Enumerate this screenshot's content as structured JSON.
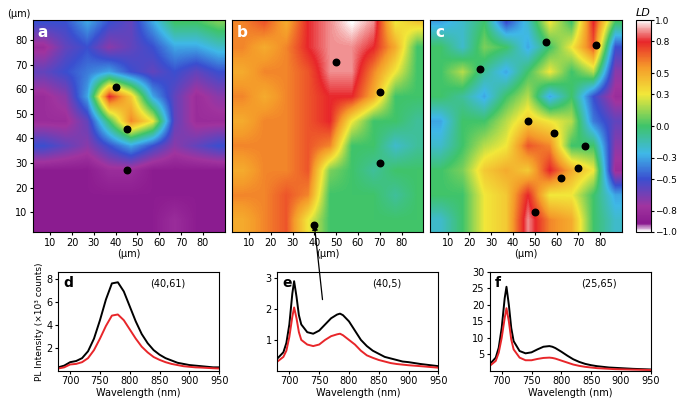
{
  "chart_data": [
    {
      "type": "heatmap",
      "title": "a",
      "x_label": "(μm)",
      "y_label": "(μm)",
      "x": [
        7,
        17,
        27,
        37,
        47,
        57,
        67,
        77,
        87
      ],
      "y": [
        7,
        17,
        27,
        37,
        47,
        57,
        67,
        77,
        87
      ],
      "cells": [
        [
          -0.9,
          -0.9,
          -0.9,
          -0.9,
          -0.9,
          -0.9,
          -0.8,
          -0.9,
          -0.9
        ],
        [
          -0.9,
          -0.9,
          -0.9,
          -0.9,
          -0.9,
          -0.9,
          -0.9,
          -0.9,
          -0.9
        ],
        [
          -0.9,
          -0.9,
          -0.9,
          -0.8,
          -0.8,
          -0.9,
          -0.9,
          -0.9,
          -0.9
        ],
        [
          -0.5,
          -0.6,
          -0.7,
          -0.5,
          -0.3,
          -0.5,
          -0.7,
          -0.6,
          -0.5
        ],
        [
          -0.8,
          -0.8,
          -0.6,
          0.0,
          0.6,
          0.3,
          -0.6,
          -0.8,
          -0.8
        ],
        [
          -0.8,
          -0.7,
          -0.3,
          0.8,
          0.4,
          -0.3,
          -0.6,
          -0.8,
          -0.7
        ],
        [
          -0.6,
          -0.5,
          -0.4,
          -0.3,
          -0.5,
          -0.6,
          -0.5,
          -0.6,
          -0.5
        ],
        [
          -0.8,
          -0.6,
          -0.5,
          -0.7,
          -0.6,
          -0.5,
          -0.3,
          -0.3,
          -0.2
        ],
        [
          -0.5,
          -0.5,
          -0.3,
          -0.5,
          -0.6,
          -0.3,
          0.0,
          0.0,
          0.1
        ]
      ],
      "clim": [
        -1.0,
        1.0
      ],
      "points": {
        "x": [
          40,
          45,
          45
        ],
        "y": [
          61,
          44,
          27
        ]
      },
      "xlim": [
        2,
        90
      ],
      "ylim": [
        2,
        88
      ],
      "xticks": [
        10,
        20,
        30,
        40,
        50,
        60,
        70,
        80
      ],
      "yticks": [
        10,
        20,
        30,
        40,
        50,
        60,
        70,
        80
      ]
    },
    {
      "type": "heatmap",
      "title": "b",
      "x_label": "(μm)",
      "tick_labels": "x",
      "x": [
        7,
        17,
        27,
        37,
        47,
        57,
        67,
        77,
        87
      ],
      "y": [
        7,
        17,
        27,
        37,
        47,
        57,
        67,
        77,
        87
      ],
      "cells": [
        [
          0.5,
          0.6,
          0.7,
          0.3,
          0.0,
          0.0,
          0.0,
          0.0,
          0.0
        ],
        [
          0.6,
          0.6,
          0.7,
          0.6,
          0.0,
          0.0,
          0.0,
          -0.1,
          0.0
        ],
        [
          0.5,
          0.6,
          0.6,
          0.7,
          0.1,
          0.0,
          -0.1,
          0.0,
          0.0
        ],
        [
          0.6,
          0.6,
          0.6,
          0.7,
          0.6,
          0.0,
          0.0,
          -0.2,
          -0.1
        ],
        [
          0.5,
          0.6,
          0.6,
          0.7,
          0.8,
          0.3,
          0.0,
          0.0,
          -0.1
        ],
        [
          0.6,
          0.5,
          0.6,
          0.7,
          0.8,
          0.8,
          0.5,
          0.0,
          0.0
        ],
        [
          0.5,
          0.6,
          0.6,
          0.7,
          0.9,
          0.9,
          0.6,
          0.3,
          0.0
        ],
        [
          0.6,
          0.5,
          0.6,
          0.8,
          0.9,
          0.9,
          0.8,
          0.5,
          0.0
        ],
        [
          0.6,
          0.7,
          0.5,
          0.8,
          0.9,
          1.0,
          0.9,
          0.3,
          0.4
        ]
      ],
      "clim": [
        -1.0,
        1.0
      ],
      "points": {
        "x": [
          50,
          70,
          70,
          40
        ],
        "y": [
          71,
          59,
          30,
          5
        ]
      },
      "xlim": [
        2,
        90
      ],
      "ylim": [
        2,
        88
      ],
      "xticks": [
        10,
        20,
        30,
        40,
        50,
        60,
        70,
        80
      ]
    },
    {
      "type": "heatmap",
      "title": "c",
      "x_label": "(μm)",
      "tick_labels": "x",
      "x": [
        7,
        17,
        27,
        37,
        47,
        57,
        67,
        77,
        87
      ],
      "y": [
        7,
        17,
        27,
        37,
        47,
        57,
        67,
        77,
        87
      ],
      "cells": [
        [
          -0.2,
          0.0,
          0.3,
          0.4,
          0.9,
          0.6,
          0.5,
          0.0,
          -0.2
        ],
        [
          0.0,
          0.0,
          0.3,
          0.4,
          0.8,
          0.3,
          0.3,
          0.0,
          -0.3
        ],
        [
          0.0,
          0.1,
          0.4,
          0.5,
          0.4,
          0.8,
          0.5,
          0.3,
          -0.8
        ],
        [
          -0.2,
          0.0,
          0.2,
          0.3,
          0.7,
          0.6,
          0.0,
          0.0,
          -0.7
        ],
        [
          -0.3,
          0.0,
          0.0,
          0.2,
          0.4,
          0.3,
          0.2,
          -0.4,
          -0.6
        ],
        [
          0.0,
          -0.1,
          -0.3,
          0.0,
          0.2,
          -0.3,
          0.0,
          -0.5,
          -0.8
        ],
        [
          0.0,
          0.2,
          -0.1,
          -0.3,
          0.0,
          0.3,
          0.0,
          0.2,
          -0.7
        ],
        [
          0.0,
          -0.2,
          0.1,
          0.0,
          -0.3,
          0.0,
          0.3,
          0.7,
          -0.5
        ],
        [
          -0.3,
          -0.2,
          0.0,
          -0.5,
          -0.2,
          0.3,
          0.0,
          0.8,
          0.0
        ]
      ],
      "clim": [
        -1.0,
        1.0
      ],
      "points": {
        "x": [
          25,
          55,
          78,
          47,
          59,
          73,
          62,
          70,
          50
        ],
        "y": [
          68,
          79,
          78,
          47,
          42,
          37,
          24,
          28,
          10
        ]
      },
      "xlim": [
        2,
        90
      ],
      "ylim": [
        2,
        88
      ],
      "xticks": [
        10,
        20,
        30,
        40,
        50,
        60,
        70,
        80
      ],
      "colorbar": {
        "label": "LD",
        "range": [
          -1.0,
          1.0
        ],
        "ticks": [
          1.0,
          0.8,
          0.5,
          0.3,
          0.0,
          {
            "value": -0.3,
            "label": "−0.3"
          },
          {
            "value": -0.5,
            "label": "−0.5"
          },
          {
            "value": -0.8,
            "label": "−0.8"
          },
          {
            "value": -1.0,
            "label": "−1.0"
          }
        ]
      }
    },
    {
      "type": "line",
      "title": "d",
      "annotation": "(40,61)",
      "x_label": "Wavelength (nm)",
      "y_label": "PL Intensity (×10³ counts)",
      "x": [
        680,
        690,
        700,
        710,
        720,
        730,
        740,
        750,
        760,
        770,
        780,
        790,
        800,
        810,
        820,
        830,
        840,
        850,
        860,
        870,
        880,
        890,
        900,
        910,
        920,
        930,
        940,
        950
      ],
      "series": [
        {
          "color": "#000000",
          "values": [
            0.3,
            0.45,
            0.75,
            0.85,
            1.1,
            1.7,
            2.8,
            4.4,
            6.2,
            7.6,
            7.7,
            6.9,
            5.6,
            4.3,
            3.2,
            2.4,
            1.8,
            1.4,
            1.1,
            0.9,
            0.7,
            0.6,
            0.5,
            0.45,
            0.4,
            0.35,
            0.3,
            0.3
          ]
        },
        {
          "color": "#e8262a",
          "values": [
            0.2,
            0.3,
            0.55,
            0.6,
            0.75,
            1.1,
            1.8,
            2.8,
            3.9,
            4.8,
            4.9,
            4.4,
            3.6,
            2.8,
            2.1,
            1.6,
            1.2,
            0.95,
            0.75,
            0.6,
            0.5,
            0.4,
            0.35,
            0.3,
            0.28,
            0.25,
            0.22,
            0.2
          ]
        }
      ],
      "xlim": [
        680,
        950
      ],
      "ylim": [
        0,
        8.6
      ],
      "xticks": [
        700,
        750,
        800,
        850,
        900,
        950
      ],
      "yticks": [
        2,
        4,
        6,
        8
      ]
    },
    {
      "type": "line",
      "title": "e",
      "annotation": "(40,5)",
      "x_label": "Wavelength (nm)",
      "x": [
        680,
        690,
        695,
        700,
        705,
        708,
        712,
        716,
        720,
        730,
        740,
        750,
        760,
        770,
        780,
        785,
        790,
        800,
        810,
        820,
        830,
        840,
        850,
        860,
        870,
        880,
        890,
        900,
        920,
        950
      ],
      "series": [
        {
          "color": "#000000",
          "values": [
            0.4,
            0.6,
            0.9,
            1.5,
            2.5,
            2.9,
            2.4,
            1.8,
            1.5,
            1.25,
            1.2,
            1.3,
            1.5,
            1.7,
            1.82,
            1.85,
            1.8,
            1.6,
            1.3,
            1.0,
            0.8,
            0.65,
            0.55,
            0.45,
            0.4,
            0.35,
            0.3,
            0.28,
            0.22,
            0.15
          ]
        },
        {
          "color": "#e8262a",
          "values": [
            0.3,
            0.45,
            0.65,
            1.1,
            1.75,
            2.05,
            1.7,
            1.25,
            1.0,
            0.85,
            0.8,
            0.85,
            1.0,
            1.12,
            1.18,
            1.2,
            1.15,
            1.0,
            0.85,
            0.65,
            0.5,
            0.42,
            0.35,
            0.3,
            0.25,
            0.22,
            0.2,
            0.18,
            0.15,
            0.1
          ]
        }
      ],
      "xlim": [
        680,
        950
      ],
      "ylim": [
        0,
        3.2
      ],
      "xticks": [
        700,
        750,
        800,
        850,
        900,
        950
      ],
      "yticks": [
        1,
        2,
        3
      ]
    },
    {
      "type": "line",
      "title": "f",
      "annotation": "(25,65)",
      "x_label": "Wavelength (nm)",
      "x": [
        680,
        690,
        695,
        700,
        705,
        708,
        712,
        716,
        720,
        730,
        740,
        750,
        760,
        770,
        780,
        785,
        790,
        800,
        810,
        820,
        830,
        840,
        850,
        860,
        870,
        880,
        890,
        900,
        920,
        950
      ],
      "series": [
        {
          "color": "#000000",
          "values": [
            2,
            4,
            7,
            13,
            22,
            25.5,
            20,
            13,
            9,
            6,
            5.3,
            5.6,
            6.5,
            7.3,
            7.5,
            7.3,
            6.9,
            5.8,
            4.6,
            3.5,
            2.7,
            2.1,
            1.7,
            1.4,
            1.2,
            1.0,
            0.9,
            0.8,
            0.6,
            0.4
          ]
        },
        {
          "color": "#e8262a",
          "values": [
            1.5,
            3,
            5.5,
            10,
            16,
            19,
            15,
            9.5,
            6.5,
            4,
            3.2,
            3.2,
            3.6,
            3.9,
            4.0,
            3.9,
            3.7,
            3.1,
            2.5,
            1.9,
            1.5,
            1.2,
            1.0,
            0.8,
            0.7,
            0.6,
            0.5,
            0.45,
            0.35,
            0.25
          ]
        }
      ],
      "xlim": [
        680,
        950
      ],
      "ylim": [
        0,
        30
      ],
      "xticks": [
        700,
        750,
        800,
        850,
        900,
        950
      ],
      "yticks": [
        5,
        10,
        15,
        20,
        25,
        30
      ]
    }
  ]
}
